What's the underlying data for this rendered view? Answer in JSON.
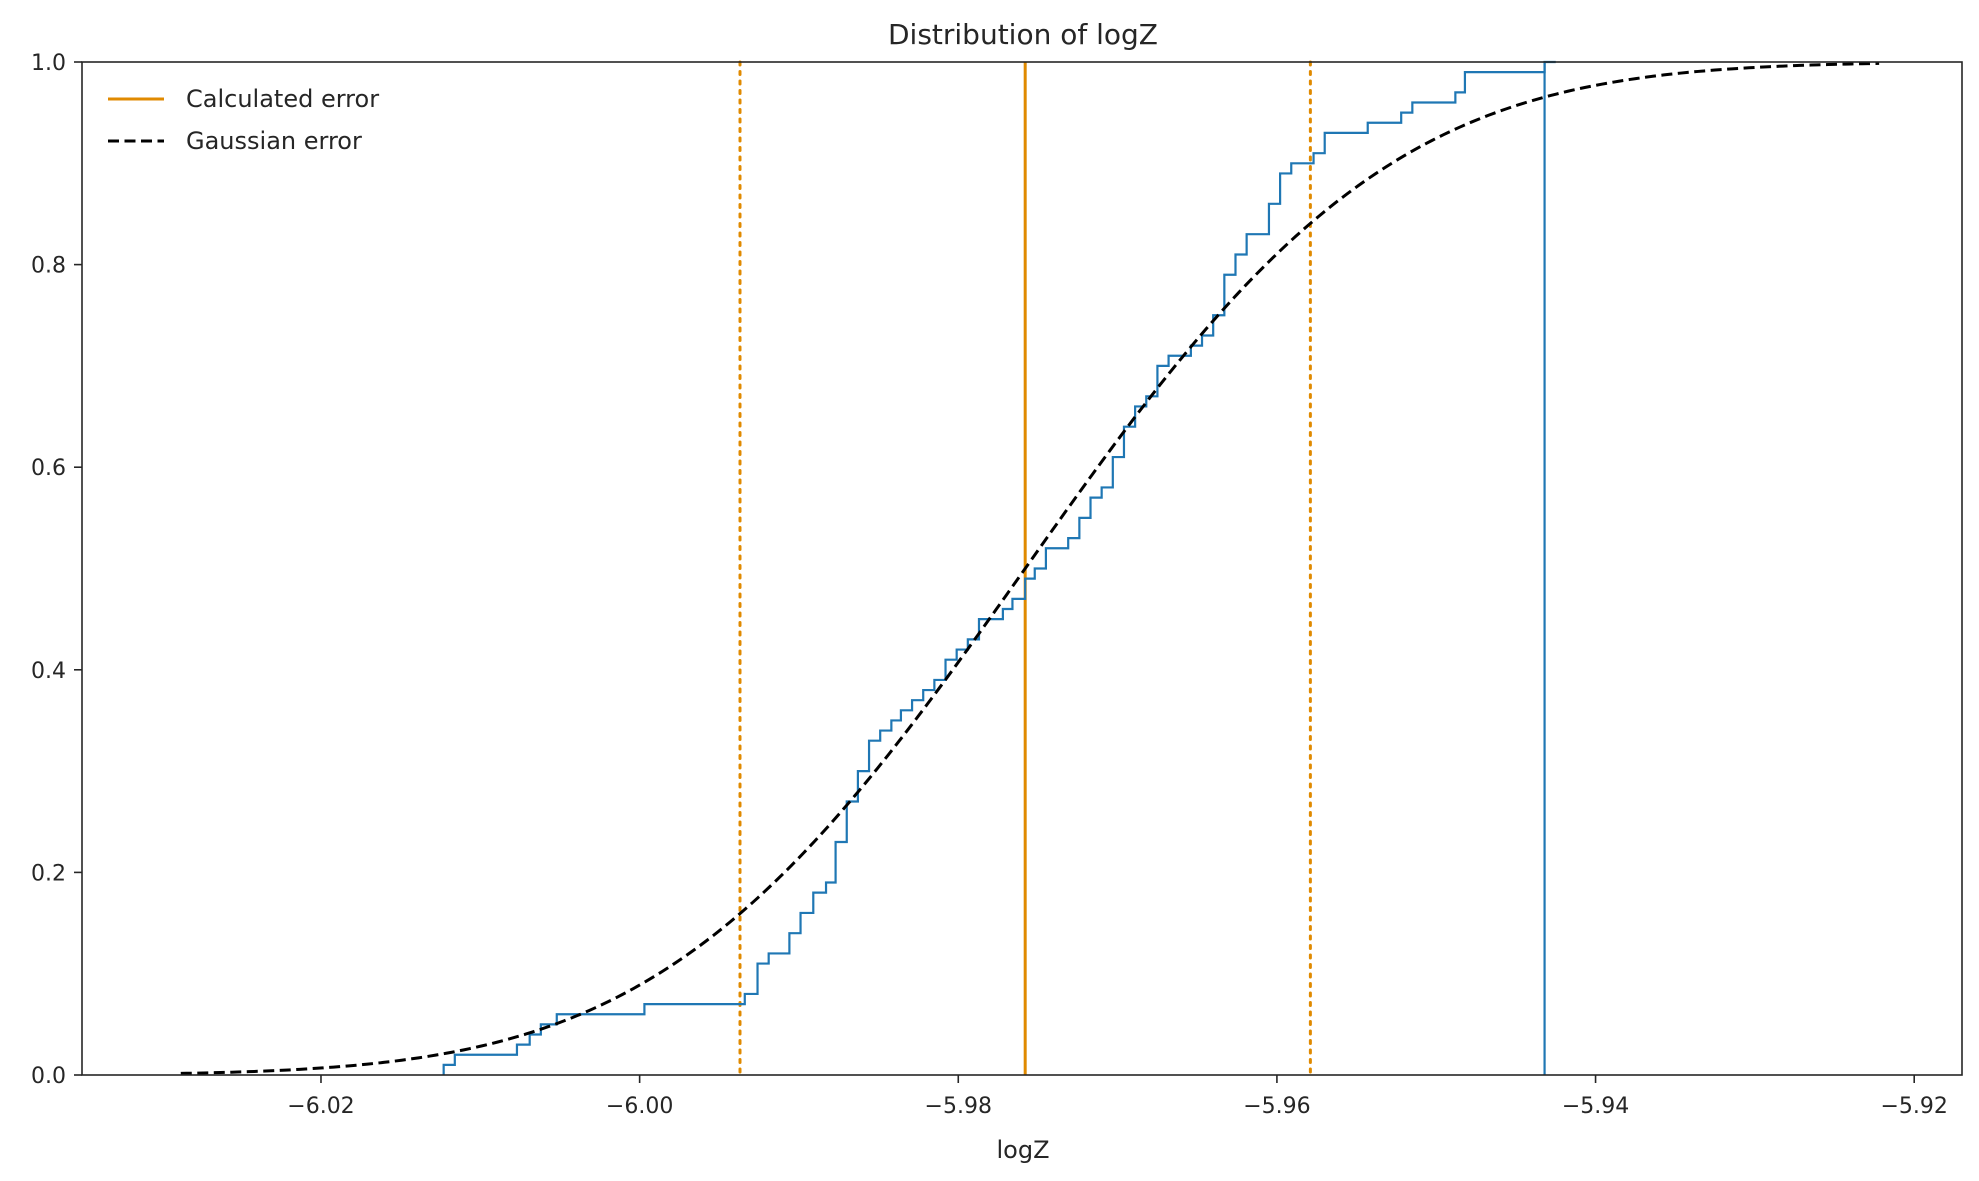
{
  "chart_data": {
    "type": "line",
    "title": "Distribution of logZ",
    "xlabel": "logZ",
    "ylabel": "",
    "xlim": [
      -6.035,
      -5.917
    ],
    "ylim": [
      0.0,
      1.0
    ],
    "grid": false,
    "legend_position": "top-left",
    "x_ticks": [
      -6.02,
      -6.0,
      -5.98,
      -5.96,
      -5.94,
      -5.92
    ],
    "x_tick_labels": [
      "−6.02",
      "−6.00",
      "−5.98",
      "−5.96",
      "−5.94",
      "−5.92"
    ],
    "y_ticks": [
      0.0,
      0.2,
      0.4,
      0.6,
      0.8,
      1.0
    ],
    "y_tick_labels": [
      "0.0",
      "0.2",
      "0.4",
      "0.6",
      "0.8",
      "1.0"
    ],
    "legend": [
      {
        "label": "Calculated error",
        "color": "#e08a00",
        "style": "solid"
      },
      {
        "label": "Gaussian error",
        "color": "#000000",
        "style": "dashed"
      }
    ],
    "gaussian_cdf": {
      "mean": -5.9758,
      "sigma": 0.01795,
      "x_range": [
        -6.0288,
        -5.9222
      ]
    },
    "reference_lines": [
      {
        "x": -5.9758,
        "color": "#e08a00",
        "style": "solid"
      },
      {
        "x": -5.9937,
        "color": "#e08a00",
        "style": "dotted"
      },
      {
        "x": -5.9579,
        "color": "#e08a00",
        "style": "dotted"
      }
    ],
    "empirical_cdf": {
      "color": "#1f77b4",
      "points": [
        [
          -6.0123,
          0.01
        ],
        [
          -6.0116,
          0.02
        ],
        [
          -6.0077,
          0.03
        ],
        [
          -6.0069,
          0.04
        ],
        [
          -6.0062,
          0.05
        ],
        [
          -6.0052,
          0.06
        ],
        [
          -5.9997,
          0.07
        ],
        [
          -5.9934,
          0.08
        ],
        [
          -5.9926,
          0.11
        ],
        [
          -5.9919,
          0.12
        ],
        [
          -5.9906,
          0.14
        ],
        [
          -5.9899,
          0.16
        ],
        [
          -5.9891,
          0.18
        ],
        [
          -5.9883,
          0.19
        ],
        [
          -5.9877,
          0.23
        ],
        [
          -5.987,
          0.27
        ],
        [
          -5.9863,
          0.3
        ],
        [
          -5.9856,
          0.33
        ],
        [
          -5.9849,
          0.34
        ],
        [
          -5.9842,
          0.35
        ],
        [
          -5.9836,
          0.36
        ],
        [
          -5.9829,
          0.37
        ],
        [
          -5.9822,
          0.38
        ],
        [
          -5.9815,
          0.39
        ],
        [
          -5.9808,
          0.41
        ],
        [
          -5.9801,
          0.42
        ],
        [
          -5.9794,
          0.43
        ],
        [
          -5.9787,
          0.45
        ],
        [
          -5.9772,
          0.46
        ],
        [
          -5.9766,
          0.47
        ],
        [
          -5.9758,
          0.49
        ],
        [
          -5.9752,
          0.5
        ],
        [
          -5.9745,
          0.52
        ],
        [
          -5.9731,
          0.53
        ],
        [
          -5.9724,
          0.55
        ],
        [
          -5.9717,
          0.57
        ],
        [
          -5.971,
          0.58
        ],
        [
          -5.9703,
          0.61
        ],
        [
          -5.9696,
          0.64
        ],
        [
          -5.9689,
          0.66
        ],
        [
          -5.9682,
          0.67
        ],
        [
          -5.9675,
          0.7
        ],
        [
          -5.9668,
          0.71
        ],
        [
          -5.9654,
          0.72
        ],
        [
          -5.9647,
          0.73
        ],
        [
          -5.964,
          0.75
        ],
        [
          -5.9633,
          0.79
        ],
        [
          -5.9626,
          0.81
        ],
        [
          -5.9619,
          0.83
        ],
        [
          -5.9605,
          0.86
        ],
        [
          -5.9598,
          0.89
        ],
        [
          -5.9591,
          0.9
        ],
        [
          -5.9577,
          0.91
        ],
        [
          -5.957,
          0.93
        ],
        [
          -5.9543,
          0.94
        ],
        [
          -5.9522,
          0.95
        ],
        [
          -5.9515,
          0.96
        ],
        [
          -5.9488,
          0.97
        ],
        [
          -5.9482,
          0.99
        ],
        [
          -5.9432,
          1.0
        ]
      ],
      "final_x": -5.9425
    }
  }
}
